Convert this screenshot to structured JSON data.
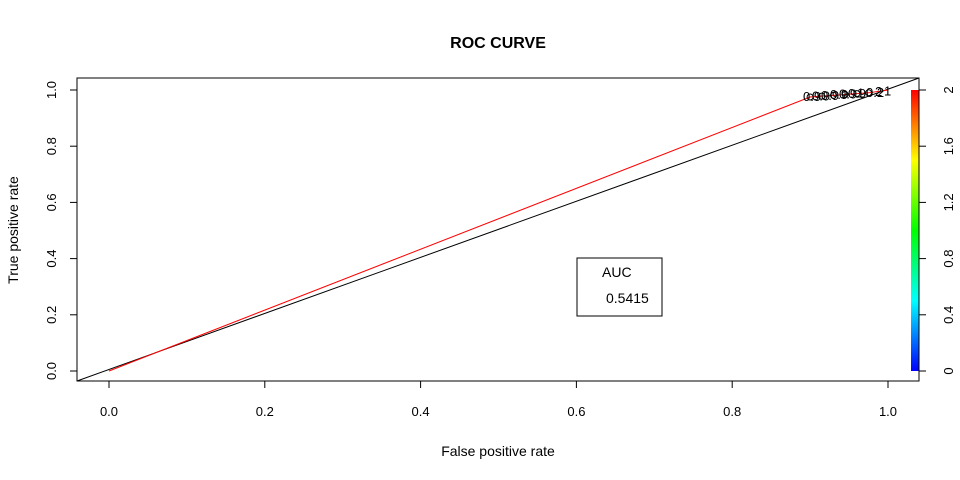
{
  "chart_data": {
    "type": "line",
    "title": "ROC CURVE",
    "xlabel": "False positive rate",
    "ylabel": "True positive rate",
    "xlim": [
      0,
      1
    ],
    "ylim": [
      0,
      1
    ],
    "x_ticks": [
      "0.0",
      "0.2",
      "0.4",
      "0.6",
      "0.8",
      "1.0"
    ],
    "y_ticks": [
      "0.0",
      "0.2",
      "0.4",
      "0.6",
      "0.8",
      "1.0"
    ],
    "grid": false,
    "series": [
      {
        "x": [
          0.0,
          0.9,
          0.915,
          0.93,
          0.945,
          0.96,
          0.975,
          1.0
        ],
        "y": [
          0.0,
          0.975,
          0.978,
          0.981,
          0.984,
          0.987,
          0.99,
          1.0
        ],
        "color": "#ff0000"
      }
    ],
    "reference_line": {
      "x": [
        0,
        1
      ],
      "y": [
        0,
        1
      ],
      "color": "#000000"
    },
    "point_labels": [
      "0.9",
      "0.9",
      "0.9",
      "0.9",
      "0.9",
      "0.9",
      "1",
      "0.2",
      "2",
      "1"
    ],
    "legend": {
      "title": "AUC",
      "value": "0.5415"
    },
    "colorbar": {
      "range": [
        0,
        2
      ],
      "ticks": [
        "0",
        "0.4",
        "0.8",
        "1.2",
        "1.6",
        "2"
      ],
      "colors": [
        "#0000ff",
        "#00ffff",
        "#00ff00",
        "#ffff00",
        "#ff0000"
      ]
    }
  }
}
